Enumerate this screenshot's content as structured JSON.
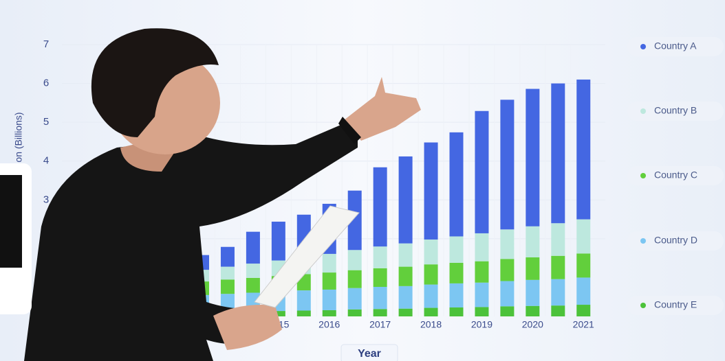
{
  "chart_data": {
    "type": "bar",
    "stacked": true,
    "y_label": "on (Billions)",
    "x_label": "Year",
    "categories": [
      null,
      null,
      null,
      "2015",
      null,
      "2016",
      null,
      "2017",
      null,
      "2018",
      null,
      "2019",
      null,
      "2020",
      null,
      "2021"
    ],
    "ylim": [
      0,
      7
    ],
    "yticks": [
      2,
      3,
      4,
      5,
      6,
      7
    ],
    "grid": true,
    "series": [
      {
        "name": "Country E",
        "color": "#4cc23a",
        "values": [
          0.1,
          0.11,
          0.13,
          0.14,
          0.15,
          0.16,
          0.18,
          0.19,
          0.2,
          0.22,
          0.23,
          0.24,
          0.26,
          0.27,
          0.28,
          0.3
        ]
      },
      {
        "name": "Country D",
        "color": "#7cc6f2",
        "values": [
          0.45,
          0.47,
          0.48,
          0.5,
          0.52,
          0.53,
          0.55,
          0.57,
          0.58,
          0.6,
          0.62,
          0.63,
          0.65,
          0.67,
          0.68,
          0.7
        ]
      },
      {
        "name": "Country C",
        "color": "#62cf3c",
        "values": [
          0.35,
          0.37,
          0.38,
          0.4,
          0.42,
          0.44,
          0.46,
          0.48,
          0.5,
          0.52,
          0.53,
          0.55,
          0.57,
          0.58,
          0.6,
          0.62
        ]
      },
      {
        "name": "Country B",
        "color": "#bde8de",
        "values": [
          0.3,
          0.33,
          0.37,
          0.4,
          0.44,
          0.48,
          0.52,
          0.56,
          0.6,
          0.64,
          0.68,
          0.72,
          0.76,
          0.8,
          0.84,
          0.88
        ]
      },
      {
        "name": "Country A",
        "color": "#4467e2",
        "values": [
          0.38,
          0.51,
          0.82,
          1.0,
          1.09,
          1.29,
          1.53,
          2.04,
          2.24,
          2.5,
          2.68,
          3.15,
          3.34,
          3.54,
          3.6,
          3.6
        ]
      }
    ]
  }
}
